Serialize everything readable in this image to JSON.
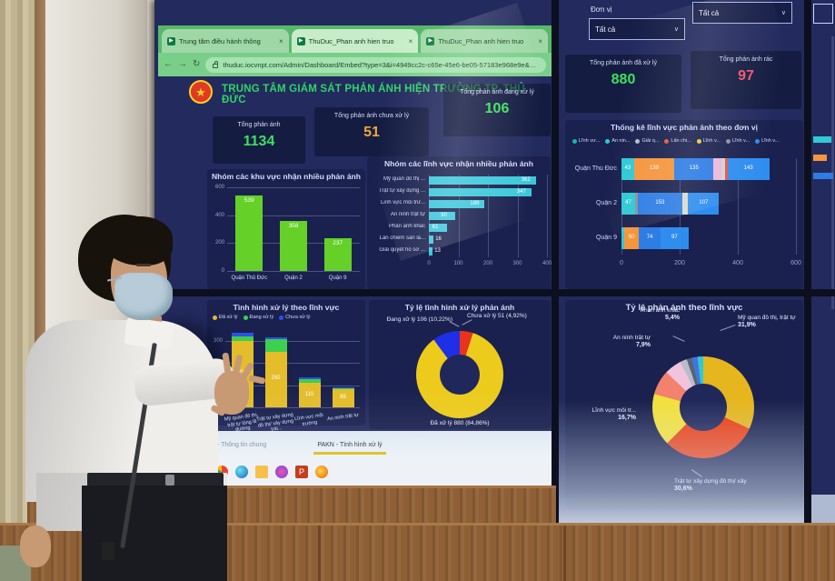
{
  "browser": {
    "tabs": [
      {
        "label": "Trung tâm điều hành thông"
      },
      {
        "label": "ThuDuc_Phan anh hien truo"
      },
      {
        "label": "ThuDuc_Phan anh hien truo"
      }
    ],
    "close_glyph": "×",
    "nav": {
      "back": "←",
      "forward": "→",
      "reload": "↻"
    },
    "favicon_glyph": "▶",
    "url": "thuduc.iocvnpt.com/Admin/Dashboard/Embed?type=3&i=4949cc2c-c65e-45e6-be05-57183e968e9e&g=10"
  },
  "header": {
    "title": "TRUNG TÂM GIÁM SÁT PHẢN ÁNH HIỆN TRƯỜNG TP. THỦ ĐỨC",
    "emblem_glyph": "★"
  },
  "filters": {
    "don_vi_label": "Đơn vị",
    "don_vi_value": "Tất cả",
    "linh_vuc_value": "Tất cả",
    "chevron": "∨"
  },
  "kpis": [
    {
      "label": "Tổng phản ánh",
      "value": "1134",
      "color": "#3fe05e"
    },
    {
      "label": "Tổng phản ánh chưa xử lý",
      "value": "51",
      "color": "#f0a63c"
    },
    {
      "label": "Tổng phản ánh đang xử lý",
      "value": "106",
      "color": "#3fe05e"
    },
    {
      "label": "Tổng phản ánh đã xử lý",
      "value": "880",
      "color": "#3fe05e"
    },
    {
      "label": "Tổng phản ánh rác",
      "value": "97",
      "color": "#f2536b"
    }
  ],
  "chart_data": [
    {
      "id": "khu_vuc",
      "type": "bar",
      "title": "Nhóm các khu vực nhận nhiều phản ánh",
      "categories": [
        "Quận Thủ Đức",
        "Quận 2",
        "Quận 9"
      ],
      "values": [
        539,
        358,
        237
      ],
      "bar_color": "#64d028",
      "ylim": [
        0,
        600
      ],
      "yticks": [
        0,
        200,
        400,
        600
      ],
      "grid": true
    },
    {
      "id": "linh_vuc",
      "type": "hbar",
      "title": "Nhóm các lĩnh vực nhận nhiều phản ánh",
      "categories": [
        "Mỹ quan đô thị ...",
        "Trật tự xây dựng ...",
        "Lĩnh vực môi trư...",
        "An ninh trật tự",
        "Phản ánh khác",
        "Lấn chiếm san lấ...",
        "Giải quyết hồ sơ ..."
      ],
      "values": [
        362,
        347,
        189,
        90,
        61,
        16,
        13
      ],
      "bar_color": "#3cc8da",
      "xlim": [
        0,
        400
      ],
      "xticks": [
        0,
        100,
        200,
        300,
        400
      ],
      "grid": true
    },
    {
      "id": "theo_don_vi",
      "type": "stacked_hbar",
      "title": "Thống kê lĩnh vực phản ánh theo đơn vị",
      "legend": [
        {
          "label": "Lĩnh vư...",
          "color": "#17b8a6"
        },
        {
          "label": "An nin...",
          "color": "#2fc9d6"
        },
        {
          "label": "Giải q...",
          "color": "#b9bfcc"
        },
        {
          "label": "Lấn chi...",
          "color": "#e8553f"
        },
        {
          "label": "Lĩnh v...",
          "color": "#ecc937"
        },
        {
          "label": "Lĩnh v...",
          "color": "#8a90a0"
        },
        {
          "label": "Lĩnh v...",
          "color": "#2f8df0"
        }
      ],
      "xlim": [
        0,
        600
      ],
      "xticks": [
        0,
        200,
        400,
        600
      ],
      "rows": [
        {
          "name": "Quận Thủ Đức",
          "segments": [
            {
              "value": 43,
              "color": "#2fc9d6",
              "show": true
            },
            {
              "value": 139,
              "color": "#f5953c",
              "show": true
            },
            {
              "value": 135,
              "color": "#2e7de5",
              "show": true
            },
            {
              "value": 28,
              "color": "#eab7d9",
              "show": false
            },
            {
              "value": 12,
              "color": "#cfd3da",
              "show": false
            },
            {
              "value": 8,
              "color": "#e8553f",
              "show": false
            },
            {
              "value": 143,
              "color": "#2f8df0",
              "show": true
            }
          ]
        },
        {
          "name": "Quận 2",
          "segments": [
            {
              "value": 47,
              "color": "#2fc9d6",
              "show": true
            },
            {
              "value": 9,
              "color": "#8a90a0",
              "show": false
            },
            {
              "value": 153,
              "color": "#2e7de5",
              "show": true
            },
            {
              "value": 20,
              "color": "#d8d9c9",
              "show": false
            },
            {
              "value": 107,
              "color": "#2f8df0",
              "show": true
            }
          ]
        },
        {
          "name": "Quận 9",
          "segments": [
            {
              "value": 10,
              "color": "#2fc9d6",
              "show": false
            },
            {
              "value": 50,
              "color": "#f5953c",
              "show": true
            },
            {
              "value": 74,
              "color": "#2e7de5",
              "show": true
            },
            {
              "value": 97,
              "color": "#2f8df0",
              "show": true
            }
          ]
        }
      ]
    },
    {
      "id": "xu_ly_theo_linh_vuc",
      "type": "stacked_bar",
      "title": "Tình hình xử lý theo lĩnh vực",
      "legend": [
        {
          "label": "Đã xử lý",
          "color": "#e4bd2a"
        },
        {
          "label": "Đang xử lý",
          "color": "#3ecf4e"
        },
        {
          "label": "Chưa xử lý",
          "color": "#2b51e8"
        }
      ],
      "categories": [
        "Mỹ quan đô thị, trật tự lòng lề đường",
        "Trật tự xây dựng đô thị/ xây dựng trái...",
        "Lĩnh vực môi trường",
        "An ninh trật tự"
      ],
      "ylim": [
        0,
        360
      ],
      "yticks": [
        0,
        100,
        200,
        300
      ],
      "series": [
        {
          "name": "Đã xử lý",
          "color": "#e4bd2a",
          "values": [
            300,
            250,
            110,
            85
          ],
          "show_labels": true
        },
        {
          "name": "Đang xử lý",
          "color": "#3ecf4e",
          "values": [
            20,
            55,
            15,
            3
          ],
          "show_labels": false
        },
        {
          "name": "Chưa xử lý",
          "color": "#2b51e8",
          "values": [
            15,
            12,
            12,
            2
          ],
          "show_labels": false
        }
      ]
    },
    {
      "id": "ty_le_xu_ly",
      "type": "donut",
      "title": "Tỷ lệ tình hình xử lý phản ánh",
      "slices": [
        {
          "name": "Chưa xử lý",
          "value": 51,
          "pct": 4.92,
          "color": "#e8341c",
          "label": "Chưa xử lý 51 (4,92%)"
        },
        {
          "name": "Đã xử lý",
          "value": 880,
          "pct": 84.86,
          "color": "#eccb1d",
          "label": "Đã xử lý 880 (84,86%)"
        },
        {
          "name": "Đang xử lý",
          "value": 106,
          "pct": 10.22,
          "color": "#1f2fe8",
          "label": "Đang xử lý 106 (10,22%)"
        }
      ]
    },
    {
      "id": "ty_le_theo_linh_vuc",
      "type": "donut",
      "title": "Tỷ lệ phản ánh theo lĩnh vực",
      "slices": [
        {
          "name": "Mỹ quan đô thị, trật tự",
          "pct": 31.9,
          "pct_text": "31,9%",
          "color": "#e5b61e"
        },
        {
          "name": "Trật tự xây dựng đô thị/ xây",
          "pct": 30.6,
          "pct_text": "30,6%",
          "color": "#ea3e12"
        },
        {
          "name": "Lĩnh vực môi tr...",
          "pct": 16.7,
          "pct_text": "16,7%",
          "color": "#f2e03c"
        },
        {
          "name": "An ninh trật tự",
          "pct": 7.9,
          "pct_text": "7,9%",
          "color": "#f2826e"
        },
        {
          "name": "Phản ánh khác",
          "pct": 5.4,
          "pct_text": "5,4%",
          "color": "#f2c3dc"
        },
        {
          "name": "",
          "pct": 2.2,
          "pct_text": "",
          "color": "#b8bdc9"
        },
        {
          "name": "",
          "pct": 1.6,
          "pct_text": "",
          "color": "#5a6276"
        },
        {
          "name": "",
          "pct": 1.9,
          "pct_text": "",
          "color": "#3f77d9"
        },
        {
          "name": "",
          "pct": 1.8,
          "pct_text": "",
          "color": "#2fc9d6"
        }
      ]
    }
  ],
  "bottom": {
    "pages": [
      {
        "label": "… - Thông tin chung",
        "active": false
      },
      {
        "label": "PAKN - Tình hình xử lý",
        "active": true
      }
    ]
  }
}
